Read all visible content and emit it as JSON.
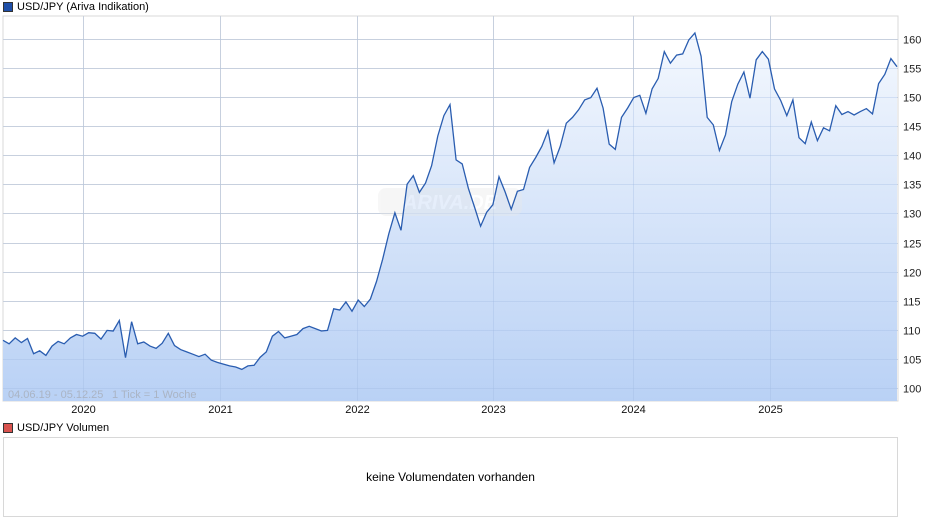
{
  "price_panel": {
    "legend_label": "USD/JPY (Ariva Indikation)",
    "legend_color": "#1f4fa8",
    "range_text": "04.06.19 - 05.12.25",
    "tick_text": "1 Tick = 1 Woche",
    "watermark": "ARIVA.DE"
  },
  "volume_panel": {
    "legend_label": "USD/JPY Volumen",
    "legend_color": "#d9534f",
    "empty_message": "keine Volumendaten vorhanden"
  },
  "chart_data": {
    "type": "area",
    "title": "USD/JPY (Ariva Indikation)",
    "xlabel": "",
    "ylabel": "",
    "ylim": [
      98,
      163
    ],
    "yticks": [
      100,
      105,
      110,
      115,
      120,
      125,
      130,
      135,
      140,
      145,
      150,
      155,
      160
    ],
    "xticks": [
      "2020",
      "2021",
      "2022",
      "2023",
      "2024",
      "2025"
    ],
    "date_range": "04.06.19 - 05.12.25",
    "interval": "1 Tick = 1 Woche",
    "grid": true,
    "legend_position": "top-left",
    "line_color": "#2a5db0",
    "fill_top_color": "#f4f8fe",
    "fill_bottom_color": "#b9d1f5",
    "series": [
      {
        "name": "USD/JPY",
        "points": [
          [
            "2019-06",
            108.2
          ],
          [
            "2019-06",
            107.6
          ],
          [
            "2019-07",
            108.6
          ],
          [
            "2019-07",
            107.8
          ],
          [
            "2019-07",
            108.5
          ],
          [
            "2019-08",
            105.9
          ],
          [
            "2019-08",
            106.4
          ],
          [
            "2019-08",
            105.6
          ],
          [
            "2019-09",
            107.2
          ],
          [
            "2019-09",
            108.0
          ],
          [
            "2019-10",
            107.6
          ],
          [
            "2019-10",
            108.6
          ],
          [
            "2019-11",
            109.2
          ],
          [
            "2019-11",
            108.9
          ],
          [
            "2019-12",
            109.5
          ],
          [
            "2019-12",
            109.4
          ],
          [
            "2020-01",
            108.4
          ],
          [
            "2020-01",
            109.9
          ],
          [
            "2020-02",
            109.8
          ],
          [
            "2020-02",
            111.6
          ],
          [
            "2020-03",
            105.2
          ],
          [
            "2020-03",
            111.4
          ],
          [
            "2020-04",
            107.6
          ],
          [
            "2020-04",
            107.9
          ],
          [
            "2020-05",
            107.2
          ],
          [
            "2020-05",
            106.8
          ],
          [
            "2020-06",
            107.7
          ],
          [
            "2020-06",
            109.4
          ],
          [
            "2020-07",
            107.3
          ],
          [
            "2020-07",
            106.6
          ],
          [
            "2020-08",
            106.2
          ],
          [
            "2020-08",
            105.8
          ],
          [
            "2020-09",
            105.4
          ],
          [
            "2020-09",
            105.8
          ],
          [
            "2020-10",
            104.8
          ],
          [
            "2020-10",
            104.4
          ],
          [
            "2020-11",
            104.1
          ],
          [
            "2020-11",
            103.8
          ],
          [
            "2020-12",
            103.6
          ],
          [
            "2020-12",
            103.2
          ],
          [
            "2021-01",
            103.8
          ],
          [
            "2021-01",
            103.9
          ],
          [
            "2021-02",
            105.3
          ],
          [
            "2021-02",
            106.2
          ],
          [
            "2021-03",
            108.9
          ],
          [
            "2021-03",
            109.7
          ],
          [
            "2021-04",
            108.6
          ],
          [
            "2021-04",
            108.9
          ],
          [
            "2021-05",
            109.2
          ],
          [
            "2021-06",
            110.2
          ],
          [
            "2021-06",
            110.6
          ],
          [
            "2021-07",
            110.2
          ],
          [
            "2021-08",
            109.8
          ],
          [
            "2021-09",
            109.9
          ],
          [
            "2021-10",
            113.6
          ],
          [
            "2021-10",
            113.4
          ],
          [
            "2021-11",
            114.8
          ],
          [
            "2021-12",
            113.2
          ],
          [
            "2021-12",
            115.1
          ],
          [
            "2022-01",
            114.0
          ],
          [
            "2022-02",
            115.3
          ],
          [
            "2022-03",
            118.3
          ],
          [
            "2022-03",
            122.1
          ],
          [
            "2022-04",
            126.5
          ],
          [
            "2022-05",
            130.1
          ],
          [
            "2022-05",
            127.1
          ],
          [
            "2022-06",
            135.0
          ],
          [
            "2022-07",
            136.5
          ],
          [
            "2022-07",
            133.6
          ],
          [
            "2022-08",
            135.2
          ],
          [
            "2022-08",
            138.2
          ],
          [
            "2022-09",
            143.3
          ],
          [
            "2022-10",
            146.8
          ],
          [
            "2022-10",
            148.7
          ],
          [
            "2022-11",
            139.2
          ],
          [
            "2022-11",
            138.5
          ],
          [
            "2022-12",
            134.3
          ],
          [
            "2022-12",
            131.1
          ],
          [
            "2023-01",
            127.8
          ],
          [
            "2023-01",
            130.2
          ],
          [
            "2023-02",
            131.5
          ],
          [
            "2023-02",
            136.3
          ],
          [
            "2023-03",
            133.7
          ],
          [
            "2023-03",
            130.7
          ],
          [
            "2023-04",
            133.8
          ],
          [
            "2023-04",
            134.1
          ],
          [
            "2023-05",
            137.9
          ],
          [
            "2023-05",
            139.6
          ],
          [
            "2023-06",
            141.5
          ],
          [
            "2023-06",
            144.2
          ],
          [
            "2023-07",
            138.7
          ],
          [
            "2023-07",
            141.5
          ],
          [
            "2023-08",
            145.5
          ],
          [
            "2023-08",
            146.5
          ],
          [
            "2023-09",
            147.8
          ],
          [
            "2023-10",
            149.5
          ],
          [
            "2023-10",
            149.9
          ],
          [
            "2023-11",
            151.5
          ],
          [
            "2023-11",
            148.1
          ],
          [
            "2023-12",
            141.9
          ],
          [
            "2023-12",
            141.0
          ],
          [
            "2024-01",
            146.5
          ],
          [
            "2024-01",
            148.1
          ],
          [
            "2024-02",
            149.9
          ],
          [
            "2024-02",
            150.3
          ],
          [
            "2024-03",
            147.2
          ],
          [
            "2024-03",
            151.4
          ],
          [
            "2024-04",
            153.2
          ],
          [
            "2024-04",
            157.8
          ],
          [
            "2024-05",
            155.8
          ],
          [
            "2024-05",
            157.2
          ],
          [
            "2024-06",
            157.4
          ],
          [
            "2024-06",
            159.8
          ],
          [
            "2024-07",
            161.0
          ],
          [
            "2024-07",
            157.0
          ],
          [
            "2024-08",
            146.5
          ],
          [
            "2024-08",
            145.2
          ],
          [
            "2024-09",
            140.8
          ],
          [
            "2024-09",
            143.5
          ],
          [
            "2024-10",
            149.2
          ],
          [
            "2024-10",
            152.2
          ],
          [
            "2024-11",
            154.3
          ],
          [
            "2024-11",
            149.8
          ],
          [
            "2024-12",
            156.4
          ],
          [
            "2024-12",
            157.8
          ],
          [
            "2025-01",
            156.5
          ],
          [
            "2025-02",
            151.4
          ],
          [
            "2025-02",
            149.4
          ],
          [
            "2025-03",
            146.8
          ],
          [
            "2025-03",
            149.5
          ],
          [
            "2025-04",
            143.0
          ],
          [
            "2025-04",
            142.0
          ],
          [
            "2025-05",
            145.7
          ],
          [
            "2025-05",
            142.5
          ],
          [
            "2025-06",
            144.7
          ],
          [
            "2025-06",
            144.2
          ],
          [
            "2025-07",
            148.5
          ],
          [
            "2025-07",
            147.0
          ],
          [
            "2025-08",
            147.5
          ],
          [
            "2025-08",
            146.9
          ],
          [
            "2025-09",
            147.5
          ],
          [
            "2025-09",
            148.0
          ],
          [
            "2025-10",
            147.1
          ],
          [
            "2025-10",
            152.3
          ],
          [
            "2025-11",
            153.9
          ],
          [
            "2025-11",
            156.6
          ],
          [
            "2025-12",
            155.2
          ]
        ]
      }
    ]
  }
}
